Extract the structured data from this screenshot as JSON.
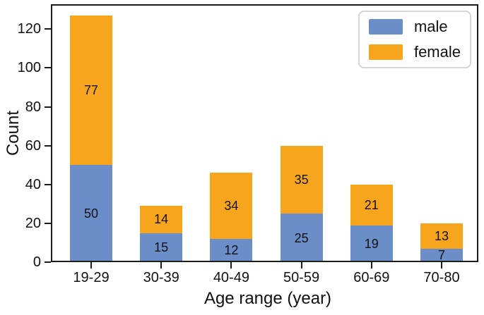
{
  "chart_data": {
    "type": "bar",
    "stacked": true,
    "title": "",
    "xlabel": "Age range (year)",
    "ylabel": "Count",
    "categories": [
      "19-29",
      "30-39",
      "40-49",
      "50-59",
      "60-69",
      "70-80"
    ],
    "series": [
      {
        "name": "male",
        "color": "#6b8ec9",
        "values": [
          50,
          15,
          12,
          25,
          19,
          7
        ]
      },
      {
        "name": "female",
        "color": "#f6a51c",
        "values": [
          77,
          14,
          34,
          35,
          21,
          13
        ]
      }
    ],
    "yticks": [
      0,
      20,
      40,
      60,
      80,
      100,
      120
    ],
    "ylim": [
      0,
      132.8
    ],
    "bar_value_labels": true,
    "grid": false,
    "legend": {
      "position": "upper-right",
      "labels": [
        "male",
        "female"
      ]
    }
  },
  "style": {
    "background": "#ffffff",
    "spine_color": "#1c1c1c",
    "text_color": "#111111",
    "legend_border_color": "#d6d6d6"
  }
}
